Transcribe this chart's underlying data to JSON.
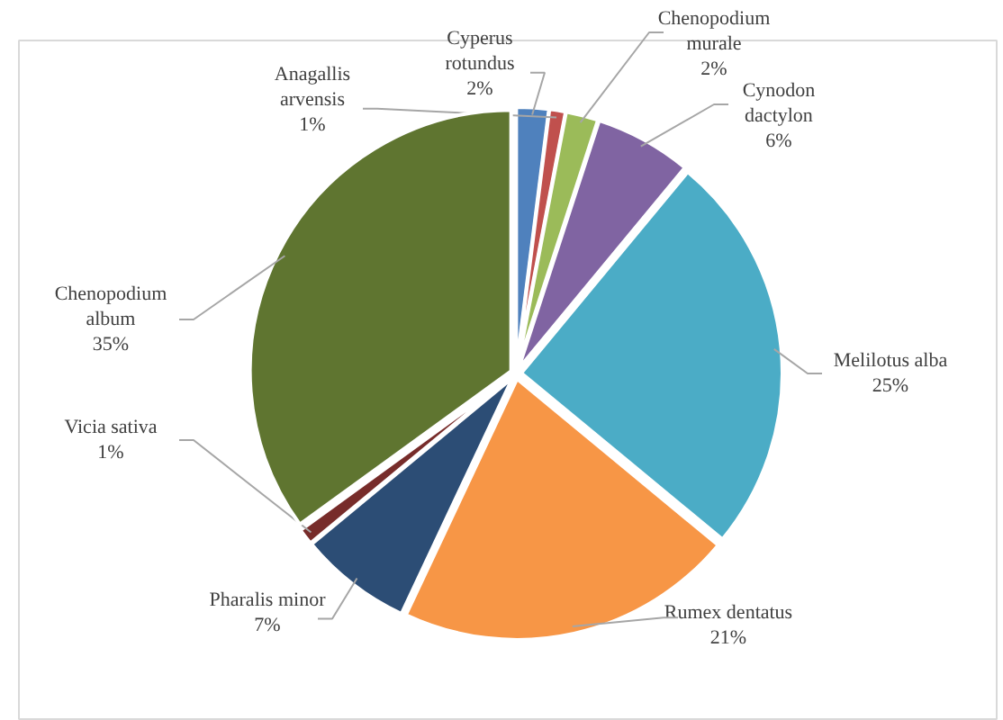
{
  "chart_data": {
    "type": "pie",
    "categories": [
      "Cyperus rotundus",
      "Anagallis arvensis",
      "Chenopodium murale",
      "Cynodon dactylon",
      "Melilotus alba",
      "Rumex dentatus",
      "Pharalis minor",
      "Vicia sativa",
      "Chenopodium album"
    ],
    "values": [
      2,
      1,
      2,
      6,
      25,
      21,
      7,
      1,
      35
    ],
    "colors": [
      "#4f81bd",
      "#c0504d",
      "#9bbb59",
      "#8064a2",
      "#4bacc6",
      "#f79646",
      "#2c4d75",
      "#772c2a",
      "#5f7530"
    ],
    "value_labels": [
      "2%",
      "1%",
      "2%",
      "6%",
      "25%",
      "21%",
      "7%",
      "1%",
      "35%"
    ]
  }
}
